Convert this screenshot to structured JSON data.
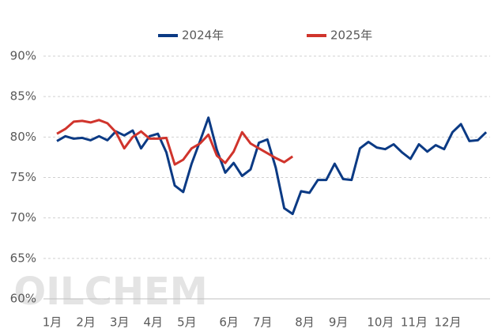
{
  "chart_data": {
    "type": "line",
    "watermark": "OILCHEM",
    "categories": [
      "1月",
      null,
      null,
      null,
      "2月",
      null,
      null,
      null,
      "3月",
      null,
      null,
      null,
      "4月",
      null,
      null,
      null,
      "5月",
      null,
      null,
      null,
      null,
      "6月",
      null,
      null,
      null,
      "7月",
      null,
      null,
      null,
      null,
      "8月",
      null,
      null,
      null,
      "9月",
      null,
      null,
      null,
      null,
      "10月",
      null,
      null,
      null,
      "11月",
      null,
      null,
      null,
      "12月",
      null,
      null,
      null,
      null
    ],
    "series": [
      {
        "name": "2024年",
        "color": "#0b3a84",
        "values": [
          79.5,
          80.1,
          79.8,
          79.9,
          79.6,
          80.1,
          79.6,
          80.7,
          80.2,
          80.8,
          78.6,
          80.1,
          80.4,
          78.1,
          74.0,
          73.2,
          76.7,
          79.5,
          82.4,
          78.4,
          75.6,
          76.8,
          75.2,
          76.0,
          79.3,
          79.7,
          76.2,
          71.2,
          70.5,
          73.3,
          73.1,
          74.7,
          74.7,
          76.7,
          74.8,
          74.7,
          78.6,
          79.4,
          78.7,
          78.5,
          79.1,
          78.1,
          77.3,
          79.1,
          78.2,
          79.0,
          78.5,
          80.6,
          81.6,
          79.5,
          79.6,
          80.6
        ]
      },
      {
        "name": "2025年",
        "color": "#d0342c",
        "values": [
          80.4,
          81.0,
          81.9,
          82.0,
          81.8,
          82.1,
          81.7,
          80.6,
          78.6,
          80.0,
          80.7,
          79.8,
          79.8,
          79.9,
          76.6,
          77.2,
          78.6,
          79.2,
          80.3,
          77.7,
          76.8,
          78.2,
          80.6,
          79.2,
          78.6,
          78.0,
          77.4,
          76.9,
          77.6,
          null,
          null,
          null,
          null,
          null,
          null,
          null,
          null,
          null,
          null,
          null,
          null,
          null,
          null,
          null,
          null,
          null,
          null,
          null,
          null,
          null,
          null,
          null
        ]
      }
    ],
    "ylim": [
      60,
      90
    ],
    "yticks": [
      {
        "value": 60,
        "label": "60%"
      },
      {
        "value": 65,
        "label": "65%"
      },
      {
        "value": 70,
        "label": "70%"
      },
      {
        "value": 75,
        "label": "75%"
      },
      {
        "value": 80,
        "label": "80%"
      },
      {
        "value": 85,
        "label": "85%"
      },
      {
        "value": 90,
        "label": "90%"
      }
    ],
    "grid": true,
    "legend": "top"
  }
}
